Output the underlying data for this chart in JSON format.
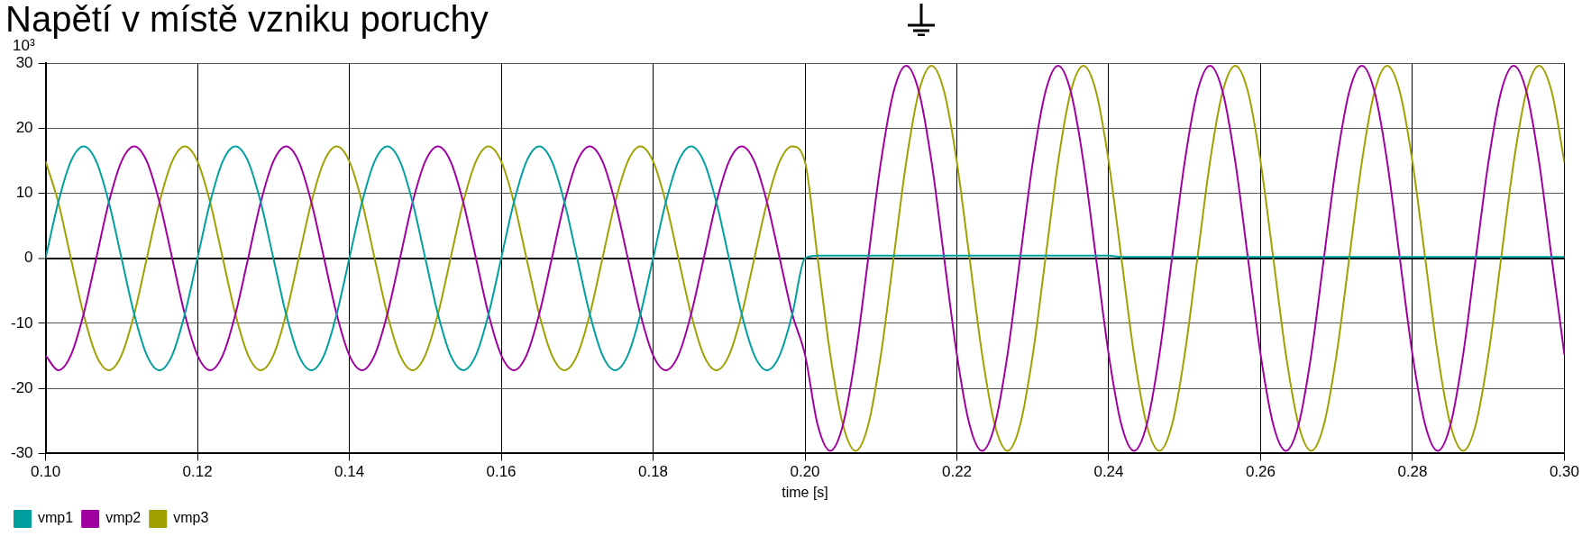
{
  "chart_data": {
    "type": "line",
    "title": "Napětí v místě vzniku poruchy",
    "xlabel": "time [s]",
    "ylabel": "10³",
    "x": [
      0.1,
      0.10167,
      0.10333,
      0.105,
      0.10667,
      0.10833,
      0.11,
      0.11167,
      0.11333,
      0.115,
      0.11667,
      0.11833,
      0.12,
      0.12167,
      0.12333,
      0.125,
      0.12667,
      0.12833,
      0.13,
      0.13167,
      0.13333,
      0.135,
      0.13667,
      0.13833,
      0.14,
      0.14167,
      0.14333,
      0.145,
      0.14667,
      0.14833,
      0.15,
      0.15167,
      0.15333,
      0.155,
      0.15667,
      0.15833,
      0.16,
      0.16167,
      0.16333,
      0.165,
      0.16667,
      0.16833,
      0.17,
      0.17167,
      0.17333,
      0.175,
      0.17667,
      0.17833,
      0.18,
      0.18167,
      0.18333,
      0.185,
      0.18667,
      0.18833,
      0.19,
      0.19167,
      0.19333,
      0.195,
      0.19667,
      0.19833,
      0.2,
      0.20167,
      0.20333,
      0.205,
      0.20667,
      0.20833,
      0.21,
      0.21167,
      0.21333,
      0.215,
      0.21667,
      0.21833,
      0.22,
      0.22167,
      0.22333,
      0.225,
      0.22667,
      0.22833,
      0.23,
      0.23167,
      0.23333,
      0.235,
      0.23667,
      0.23833,
      0.24,
      0.24167,
      0.24333,
      0.245,
      0.24667,
      0.24833,
      0.25,
      0.25167,
      0.25333,
      0.255,
      0.25667,
      0.25833,
      0.26,
      0.26167,
      0.26333,
      0.265,
      0.26667,
      0.26833,
      0.27,
      0.27167,
      0.27333,
      0.275,
      0.27667,
      0.27833,
      0.28,
      0.28167,
      0.28333,
      0.285,
      0.28667,
      0.28833,
      0.29,
      0.29167,
      0.29333,
      0.295,
      0.29667,
      0.29833,
      0.3
    ],
    "series": [
      {
        "name": "vmp1",
        "color": "#00a0a0",
        "values": [
          0,
          8.6,
          14.9,
          17.2,
          14.9,
          8.6,
          0,
          -8.6,
          -14.9,
          -17.2,
          -14.9,
          -8.6,
          0,
          8.6,
          14.9,
          17.2,
          14.9,
          8.6,
          0,
          -8.6,
          -14.9,
          -17.2,
          -14.9,
          -8.6,
          0,
          8.6,
          14.9,
          17.2,
          14.9,
          8.6,
          0,
          -8.6,
          -14.9,
          -17.2,
          -14.9,
          -8.6,
          0,
          8.6,
          14.9,
          17.2,
          14.9,
          8.6,
          0,
          -8.6,
          -14.9,
          -17.2,
          -14.9,
          -8.6,
          0,
          8.6,
          14.9,
          17.2,
          14.9,
          8.6,
          0,
          -8.6,
          -14.9,
          -17.2,
          -14.9,
          -8.6,
          0,
          0.4,
          0.4,
          0.4,
          0.4,
          0.4,
          0.4,
          0.4,
          0.4,
          0.4,
          0.4,
          0.4,
          0.4,
          0.4,
          0.4,
          0.4,
          0.4,
          0.4,
          0.4,
          0.4,
          0.4,
          0.4,
          0.4,
          0.4,
          0.4,
          0.2,
          0.2,
          0.2,
          0.2,
          0.2,
          0.2,
          0.2,
          0.2,
          0.2,
          0.2,
          0.2,
          0.2,
          0.2,
          0.2,
          0.2,
          0.2,
          0.2,
          0.2,
          0.2,
          0.2,
          0.2,
          0.2,
          0.2,
          0.2,
          0.2,
          0.2,
          0.2,
          0.2,
          0.2,
          0.2,
          0.2,
          0.2,
          0.2,
          0.2,
          0.2,
          0.2
        ]
      },
      {
        "name": "vmp2",
        "color": "#a000a0",
        "values": [
          -14.9,
          -17.2,
          -14.9,
          -8.6,
          0,
          8.6,
          14.9,
          17.2,
          14.9,
          8.6,
          0,
          -8.6,
          -14.9,
          -17.2,
          -14.9,
          -8.6,
          0,
          8.6,
          14.9,
          17.2,
          14.9,
          8.6,
          0,
          -8.6,
          -14.9,
          -17.2,
          -14.9,
          -8.6,
          0,
          8.6,
          14.9,
          17.2,
          14.9,
          8.6,
          0,
          -8.6,
          -14.9,
          -17.2,
          -14.9,
          -8.6,
          0,
          8.6,
          14.9,
          17.2,
          14.9,
          8.6,
          0,
          -8.6,
          -14.9,
          -17.2,
          -14.9,
          -8.6,
          0,
          8.6,
          14.9,
          17.2,
          14.9,
          8.6,
          0,
          -8.6,
          -14.8,
          -25.6,
          -29.6,
          -25.6,
          -14.8,
          0,
          14.8,
          25.6,
          29.6,
          25.6,
          14.8,
          0,
          -14.8,
          -25.6,
          -29.6,
          -25.6,
          -14.8,
          0,
          14.8,
          25.6,
          29.6,
          25.6,
          14.8,
          0,
          -14.8,
          -25.6,
          -29.6,
          -25.6,
          -14.8,
          0,
          14.8,
          25.6,
          29.6,
          25.6,
          14.8,
          0,
          -14.8,
          -25.6,
          -29.6,
          -25.6,
          -14.8,
          0,
          14.8,
          25.6,
          29.6,
          25.6,
          14.8,
          0,
          -14.8,
          -25.6,
          -29.6,
          -25.6,
          -14.8,
          0,
          14.8,
          25.6,
          29.6,
          25.6,
          14.8,
          0,
          -14.8
        ]
      },
      {
        "name": "vmp3",
        "color": "#a0a000",
        "values": [
          14.9,
          8.6,
          0,
          -8.6,
          -14.9,
          -17.2,
          -14.9,
          -8.6,
          0,
          8.6,
          14.9,
          17.2,
          14.9,
          8.6,
          0,
          -8.6,
          -14.9,
          -17.2,
          -14.9,
          -8.6,
          0,
          8.6,
          14.9,
          17.2,
          14.9,
          8.6,
          0,
          -8.6,
          -14.9,
          -17.2,
          -14.9,
          -8.6,
          0,
          8.6,
          14.9,
          17.2,
          14.9,
          8.6,
          0,
          -8.6,
          -14.9,
          -17.2,
          -14.9,
          -8.6,
          0,
          8.6,
          14.9,
          17.2,
          14.9,
          8.6,
          0,
          -8.6,
          -14.9,
          -17.2,
          -14.9,
          -8.6,
          0,
          8.6,
          14.9,
          17.2,
          14.8,
          0,
          -14.8,
          -25.6,
          -29.6,
          -25.6,
          -14.8,
          0,
          14.8,
          25.6,
          29.6,
          25.6,
          14.8,
          0,
          -14.8,
          -25.6,
          -29.6,
          -25.6,
          -14.8,
          0,
          14.8,
          25.6,
          29.6,
          25.6,
          14.8,
          0,
          -14.8,
          -25.6,
          -29.6,
          -25.6,
          -14.8,
          0,
          14.8,
          25.6,
          29.6,
          25.6,
          14.8,
          0,
          -14.8,
          -25.6,
          -29.6,
          -25.6,
          -14.8,
          0,
          14.8,
          25.6,
          29.6,
          25.6,
          14.8,
          0,
          -14.8,
          -25.6,
          -29.6,
          -25.6,
          -14.8,
          0,
          14.8,
          25.6,
          29.6,
          25.6,
          14.8
        ]
      }
    ],
    "xlim": [
      0.1,
      0.3
    ],
    "xticks": [
      {
        "value": 0.1,
        "label": "0.10"
      },
      {
        "value": 0.12,
        "label": "0.12"
      },
      {
        "value": 0.14,
        "label": "0.14"
      },
      {
        "value": 0.16,
        "label": "0.16"
      },
      {
        "value": 0.18,
        "label": "0.18"
      },
      {
        "value": 0.2,
        "label": "0.20"
      },
      {
        "value": 0.22,
        "label": "0.22"
      },
      {
        "value": 0.24,
        "label": "0.24"
      },
      {
        "value": 0.26,
        "label": "0.26"
      },
      {
        "value": 0.28,
        "label": "0.28"
      },
      {
        "value": 0.3,
        "label": "0.30"
      }
    ],
    "ylim": [
      -30,
      30
    ],
    "yticks": [
      -30,
      -20,
      -10,
      0,
      10,
      20,
      30
    ],
    "grid": true,
    "legend": "bottom left"
  }
}
